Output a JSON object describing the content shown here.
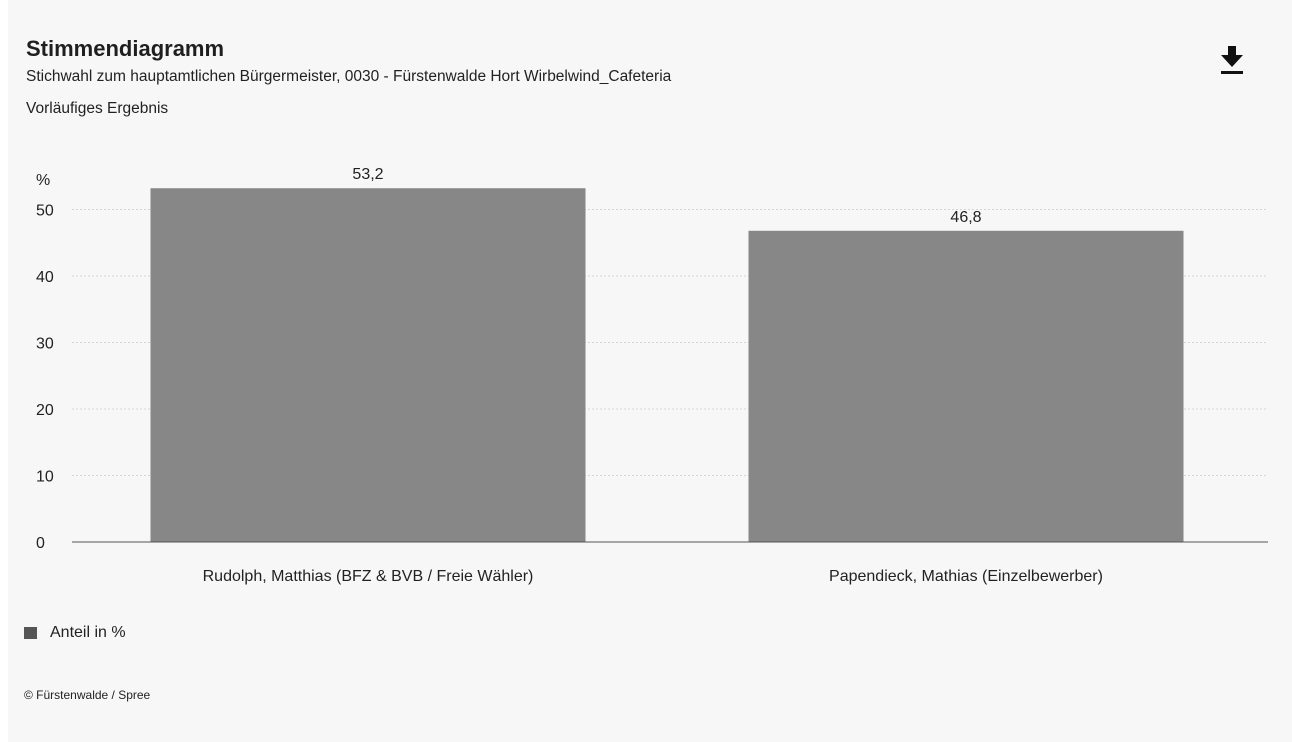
{
  "header": {
    "title": "Stimmendiagramm",
    "subtitle": "Stichwahl zum hauptamtlichen Bürgermeister, 0030 - Fürstenwalde Hort Wirbelwind_Cafeteria",
    "status": "Vorläufiges Ergebnis",
    "download_icon": "download-icon"
  },
  "chart_data": {
    "type": "bar",
    "categories": [
      "Rudolph, Matthias (BFZ & BVB / Freie Wähler)",
      "Papendieck, Mathias (Einzelbewerber)"
    ],
    "series": [
      {
        "name": "Anteil in %",
        "values": [
          53.2,
          46.8
        ]
      }
    ],
    "data_labels": [
      "53,2",
      "46,8"
    ],
    "ylabel": "%",
    "ylim": [
      0,
      60
    ],
    "yticks": [
      0,
      10,
      20,
      30,
      40,
      50
    ],
    "grid": true,
    "legend": "bottom-left",
    "bar_color": "#878787"
  },
  "legend": {
    "label": "Anteil in %",
    "swatch_color": "#555555"
  },
  "footer": {
    "copyright": "© Fürstenwalde / Spree"
  }
}
